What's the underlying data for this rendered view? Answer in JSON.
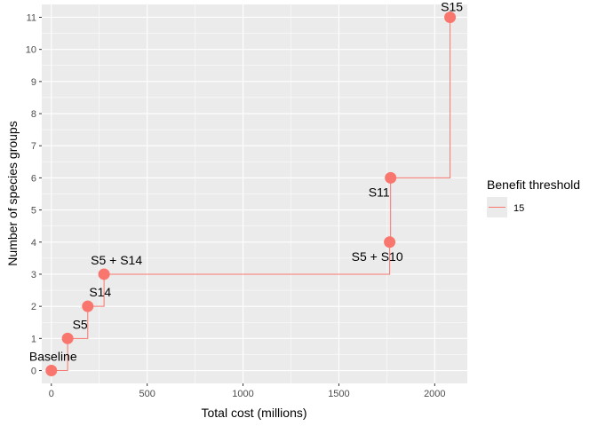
{
  "chart_data": {
    "type": "line",
    "title": "",
    "xlabel": "Total cost (millions)",
    "ylabel": "Number of species groups",
    "xlim": [
      -50,
      2170
    ],
    "ylim": [
      -0.4,
      11.4
    ],
    "x_ticks": [
      0,
      500,
      1000,
      1500,
      2000
    ],
    "y_ticks": [
      0,
      1,
      2,
      3,
      4,
      5,
      6,
      7,
      8,
      9,
      10,
      11
    ],
    "grid": true,
    "step": "horizontal-then-vertical",
    "legend": {
      "title": "Benefit threshold",
      "position": "right"
    },
    "series": [
      {
        "name": "15",
        "color": "#F8766D",
        "x": [
          0,
          85,
          190,
          275,
          1765,
          1770,
          2080
        ],
        "y": [
          0,
          1,
          2,
          3,
          4,
          6,
          11
        ],
        "labels": [
          "Baseline",
          "S5",
          "S14",
          "S5 + S14",
          "S5 + S10",
          "S11",
          "S15"
        ]
      }
    ]
  }
}
